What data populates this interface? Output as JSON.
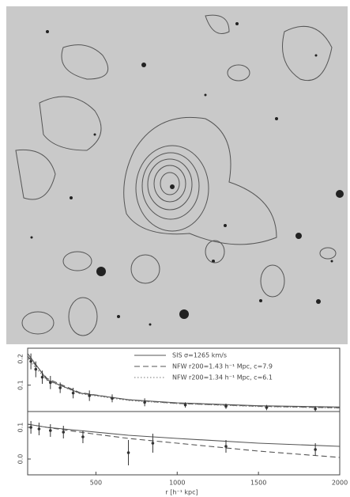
{
  "chart_data": [
    {
      "type": "line",
      "xlim": [
        80,
        2000
      ],
      "ylim": [
        0,
        0.24
      ],
      "yticks": [
        0.1,
        0.2
      ],
      "legend": "top-right",
      "series": [
        {
          "name": "SIS σ=1265 km/s",
          "color": "#555555",
          "style": "solid",
          "x": [
            80,
            200,
            400,
            700,
            1000,
            1500,
            2000
          ],
          "values": [
            0.22,
            0.12,
            0.07,
            0.045,
            0.033,
            0.022,
            0.017
          ]
        },
        {
          "name": "NFW r200=1.43 h⁻¹ Mpc, c=7.9",
          "color": "#555555",
          "style": "dashed",
          "x": [
            80,
            200,
            400,
            700,
            1000,
            1500,
            2000
          ],
          "values": [
            0.21,
            0.125,
            0.072,
            0.044,
            0.031,
            0.02,
            0.014
          ]
        },
        {
          "name": "NFW r200=1.34 h⁻¹ Mpc, c=6.1",
          "color": "#777777",
          "style": "dotted",
          "x": [
            80,
            200,
            400,
            700,
            1000,
            1500,
            2000
          ],
          "values": [
            0.2,
            0.118,
            0.068,
            0.042,
            0.03,
            0.019,
            0.013
          ]
        },
        {
          "color": "#333333",
          "style": "points",
          "x": [
            100,
            130,
            170,
            220,
            280,
            360,
            460,
            600,
            800,
            1050,
            1300,
            1550,
            1850
          ],
          "values": [
            0.19,
            0.16,
            0.13,
            0.11,
            0.09,
            0.07,
            0.06,
            0.05,
            0.035,
            0.025,
            0.02,
            0.015,
            0.01
          ],
          "errors": [
            0.03,
            0.03,
            0.025,
            0.025,
            0.02,
            0.02,
            0.02,
            0.015,
            0.015,
            0.01,
            0.01,
            0.01,
            0.01
          ]
        }
      ]
    },
    {
      "type": "line",
      "x_label": "r [h⁻¹ kpc]",
      "xlim": [
        80,
        2000
      ],
      "xticks": [
        500,
        1000,
        1500,
        2000
      ],
      "ylim": [
        -0.05,
        0.15
      ],
      "yticks": [
        {
          "value": 0,
          "label": "0.0"
        },
        0.1
      ],
      "series": [
        {
          "color": "#555555",
          "style": "solid",
          "x": [
            80,
            200,
            400,
            700,
            1000,
            1500,
            2000
          ],
          "values": [
            0.11,
            0.1,
            0.09,
            0.075,
            0.065,
            0.05,
            0.04
          ]
        },
        {
          "color": "#555555",
          "style": "dashed",
          "x": [
            80,
            200,
            400,
            700,
            1000,
            1500,
            2000
          ],
          "values": [
            0.11,
            0.1,
            0.085,
            0.065,
            0.05,
            0.025,
            0.005
          ]
        },
        {
          "color": "#333333",
          "style": "points",
          "x": [
            100,
            150,
            220,
            300,
            420,
            700,
            850,
            1300,
            1850
          ],
          "values": [
            0.1,
            0.095,
            0.09,
            0.085,
            0.07,
            0.02,
            0.05,
            0.04,
            0.03
          ],
          "errors": [
            0.02,
            0.02,
            0.02,
            0.02,
            0.02,
            0.04,
            0.03,
            0.02,
            0.02
          ]
        }
      ]
    }
  ]
}
